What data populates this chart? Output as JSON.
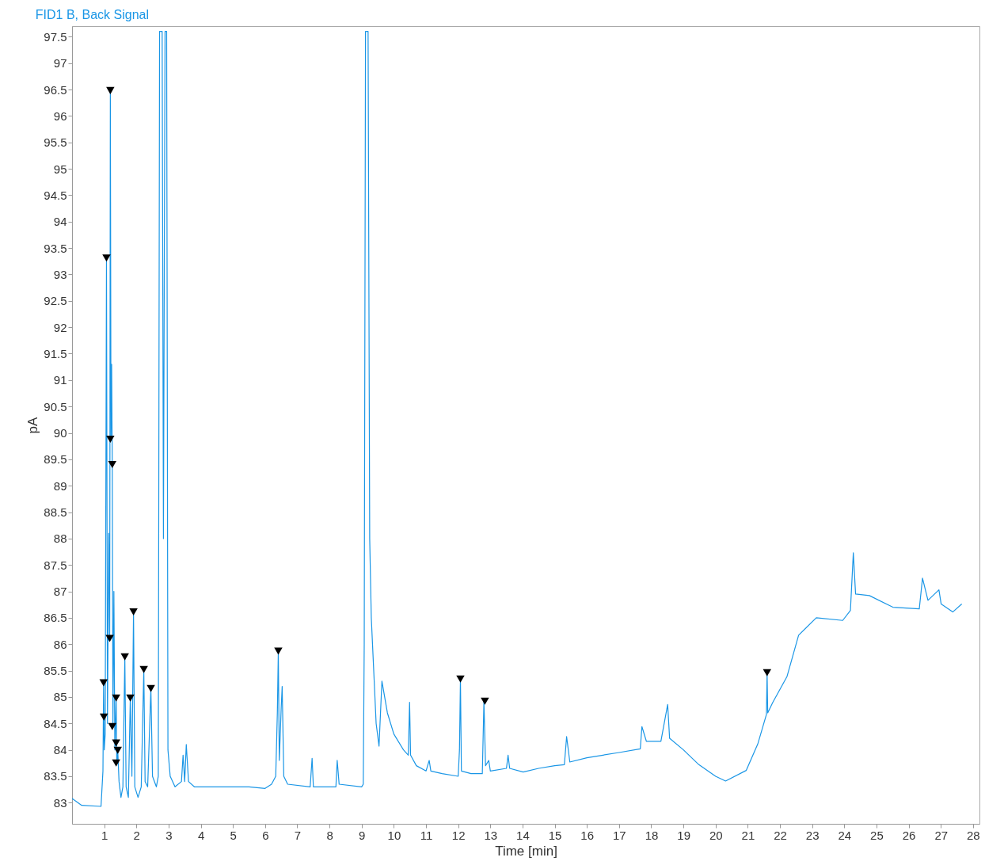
{
  "chart_data": {
    "type": "line",
    "title": "FID1 B, Back Signal",
    "xlabel": "Time [min]",
    "ylabel": "pA",
    "xlim": [
      0,
      28.2
    ],
    "ylim": [
      82.6,
      97.7
    ],
    "xticks": [
      1,
      2,
      3,
      4,
      5,
      6,
      7,
      8,
      9,
      10,
      11,
      12,
      13,
      14,
      15,
      16,
      17,
      18,
      19,
      20,
      21,
      22,
      23,
      24,
      25,
      26,
      27,
      28
    ],
    "yticks": [
      83,
      83.5,
      84,
      84.5,
      85,
      85.5,
      86,
      86.5,
      87,
      87.5,
      88,
      88.5,
      89,
      89.5,
      90,
      90.5,
      91,
      91.5,
      92,
      92.5,
      93,
      93.5,
      94,
      94.5,
      95,
      95.5,
      96,
      96.5,
      97,
      97.5
    ],
    "grid": false,
    "series": [
      {
        "color": "#1a96e6",
        "marker": "none",
        "x": [
          0,
          0.3,
          0.9,
          0.96,
          0.98,
          1.0,
          1.03,
          1.07,
          1.1,
          1.14,
          1.17,
          1.19,
          1.21,
          1.23,
          1.25,
          1.27,
          1.3,
          1.33,
          1.37,
          1.39,
          1.42,
          1.46,
          1.52,
          1.58,
          1.64,
          1.68,
          1.75,
          1.81,
          1.86,
          1.91,
          1.95,
          2.05,
          2.15,
          2.23,
          2.27,
          2.35,
          2.45,
          2.5,
          2.62,
          2.68,
          2.72,
          2.8,
          2.84,
          2.89,
          2.94,
          2.98,
          3.05,
          3.2,
          3.4,
          3.45,
          3.5,
          3.55,
          3.62,
          3.8,
          4.5,
          5.5,
          6.0,
          6.2,
          6.33,
          6.38,
          6.41,
          6.44,
          6.5,
          6.53,
          6.58,
          6.7,
          7.4,
          7.46,
          7.5,
          8.2,
          8.24,
          8.3,
          9.0,
          9.05,
          9.08,
          9.12,
          9.2,
          9.25,
          9.3,
          9.45,
          9.54,
          9.63,
          9.8,
          10.0,
          10.3,
          10.45,
          10.49,
          10.52,
          10.7,
          11.0,
          11.1,
          11.15,
          11.5,
          12.0,
          12.04,
          12.07,
          12.1,
          12.4,
          12.75,
          12.8,
          12.85,
          12.95,
          13.0,
          13.5,
          13.55,
          13.6,
          14.02,
          14.5,
          15.0,
          15.3,
          15.37,
          15.47,
          16.0,
          16.5,
          17.0,
          17.66,
          17.71,
          17.85,
          18.3,
          18.51,
          18.57,
          19.0,
          19.48,
          20.0,
          20.31,
          20.95,
          21.31,
          21.58,
          21.6,
          21.62,
          21.77,
          22.22,
          22.58,
          23.13,
          23.95,
          24.19,
          24.28,
          24.35,
          24.78,
          25.51,
          26.33,
          26.43,
          26.6,
          26.94,
          27.01,
          27.37,
          27.65
        ],
        "values": [
          83.08,
          82.95,
          82.93,
          83.6,
          85.27,
          84.0,
          84.3,
          93.31,
          84.5,
          88.1,
          86.11,
          96.48,
          89.88,
          91.3,
          89.4,
          84.44,
          87.0,
          84.0,
          84.98,
          83.75,
          83.99,
          83.4,
          83.1,
          83.3,
          85.76,
          83.3,
          83.1,
          84.98,
          83.5,
          86.61,
          83.3,
          83.1,
          83.3,
          85.52,
          83.4,
          83.3,
          85.16,
          83.5,
          83.3,
          83.5,
          97.6,
          97.6,
          88,
          97.6,
          97.6,
          84,
          83.5,
          83.3,
          83.4,
          83.9,
          83.4,
          84.1,
          83.4,
          83.3,
          83.3,
          83.3,
          83.27,
          83.35,
          83.5,
          84.7,
          85.87,
          83.8,
          84.8,
          85.2,
          83.5,
          83.35,
          83.3,
          83.84,
          83.3,
          83.3,
          83.8,
          83.35,
          83.3,
          83.35,
          86,
          97.6,
          97.6,
          88,
          86.5,
          84.5,
          84.07,
          85.3,
          84.7,
          84.3,
          84.0,
          83.9,
          84.9,
          83.9,
          83.7,
          83.6,
          83.8,
          83.6,
          83.55,
          83.5,
          84.0,
          85.34,
          83.6,
          83.55,
          83.55,
          84.92,
          83.7,
          83.8,
          83.6,
          83.65,
          83.9,
          83.65,
          83.58,
          83.65,
          83.7,
          83.72,
          84.25,
          83.77,
          83.85,
          83.9,
          83.95,
          84.02,
          84.44,
          84.16,
          84.16,
          84.86,
          84.22,
          84.0,
          83.72,
          83.5,
          83.41,
          83.61,
          84.11,
          84.67,
          85.46,
          84.7,
          84.89,
          85.39,
          86.17,
          86.5,
          86.45,
          86.64,
          87.73,
          86.95,
          86.92,
          86.7,
          86.67,
          87.25,
          86.83,
          87.03,
          86.76,
          86.61,
          86.76
        ]
      },
      {
        "type": "scatter",
        "color": "#000000",
        "marker": "triangle",
        "x": [
          0.98,
          0.99,
          1.07,
          1.19,
          1.19,
          1.25,
          1.17,
          1.25,
          1.37,
          1.37,
          1.42,
          1.37,
          1.64,
          1.81,
          1.91,
          2.23,
          2.45,
          6.41,
          12.07,
          12.83,
          21.6
        ],
        "values": [
          85.27,
          84.62,
          93.31,
          96.48,
          89.88,
          89.4,
          86.11,
          84.44,
          84.98,
          84.13,
          83.99,
          83.75,
          85.76,
          84.98,
          86.61,
          85.52,
          85.16,
          85.87,
          85.34,
          84.92,
          85.46
        ]
      }
    ]
  }
}
